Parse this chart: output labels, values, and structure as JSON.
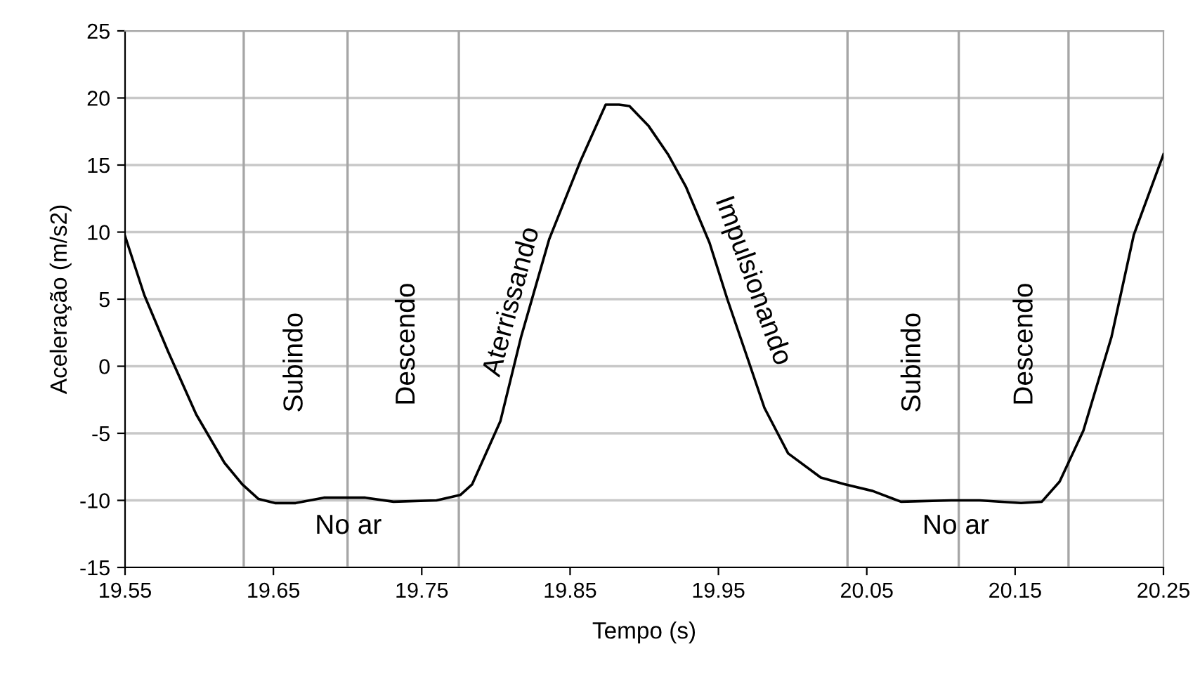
{
  "chart_data": {
    "type": "line",
    "xlabel": "Tempo (s)",
    "ylabel": "Aceleração (m/s2)",
    "series": [
      {
        "color": "#000000",
        "x": [
          19.55,
          19.563,
          19.579,
          19.598,
          19.617,
          19.629,
          19.64,
          19.651,
          19.665,
          19.684,
          19.712,
          19.731,
          19.76,
          19.776,
          19.784,
          19.803,
          19.817,
          19.836,
          19.857,
          19.874,
          19.883,
          19.89,
          19.903,
          19.916,
          19.928,
          19.944,
          19.956,
          19.969,
          19.981,
          19.997,
          20.019,
          20.035,
          20.054,
          20.073,
          20.107,
          20.126,
          20.154,
          20.168,
          20.18,
          20.196,
          20.215,
          20.23,
          20.25
        ],
        "values": [
          9.7,
          5.3,
          1.1,
          -3.6,
          -7.2,
          -8.8,
          -9.9,
          -10.2,
          -10.2,
          -9.8,
          -9.8,
          -10.1,
          -10.0,
          -9.6,
          -8.8,
          -4.1,
          2.2,
          9.5,
          15.3,
          19.5,
          19.5,
          19.4,
          17.9,
          15.8,
          13.4,
          9.2,
          5.0,
          0.8,
          -3.1,
          -6.5,
          -8.3,
          -8.8,
          -9.3,
          -10.1,
          -10.0,
          -10.0,
          -10.2,
          -10.1,
          -8.6,
          -4.8,
          2.2,
          9.8,
          15.8
        ]
      }
    ],
    "xlim": [
      19.55,
      20.25
    ],
    "xticks": [
      {
        "value": 19.55,
        "label": "19.55"
      },
      {
        "value": 19.65,
        "label": "19.65"
      },
      {
        "value": 19.75,
        "label": "19.75"
      },
      {
        "value": 19.85,
        "label": "19.85"
      },
      {
        "value": 19.95,
        "label": "19.95"
      },
      {
        "value": 20.05,
        "label": "20.05"
      },
      {
        "value": 20.15,
        "label": "20.15"
      },
      {
        "value": 20.25,
        "label": "20.25"
      }
    ],
    "ylim": [
      -15,
      25
    ],
    "yticks": [
      -15,
      -10,
      -5,
      0,
      5,
      10,
      15,
      20,
      25
    ],
    "grid": "y",
    "marker": "none",
    "line_style": "solid",
    "ref_lines": [
      {
        "axis": "x",
        "value": 19.63,
        "color": "#a6a6a6"
      },
      {
        "axis": "x",
        "value": 19.7,
        "color": "#a6a6a6"
      },
      {
        "axis": "x",
        "value": 19.775,
        "color": "#a6a6a6"
      },
      {
        "axis": "x",
        "value": 20.037,
        "color": "#a6a6a6"
      },
      {
        "axis": "x",
        "value": 20.112,
        "color": "#a6a6a6"
      },
      {
        "axis": "x",
        "value": 20.186,
        "color": "#a6a6a6"
      }
    ],
    "annotations": [
      "Subindo",
      "Descendo",
      "Aterrissando",
      "No ar",
      "Impulsionando",
      "Subindo",
      "Descendo",
      "No ar"
    ]
  }
}
